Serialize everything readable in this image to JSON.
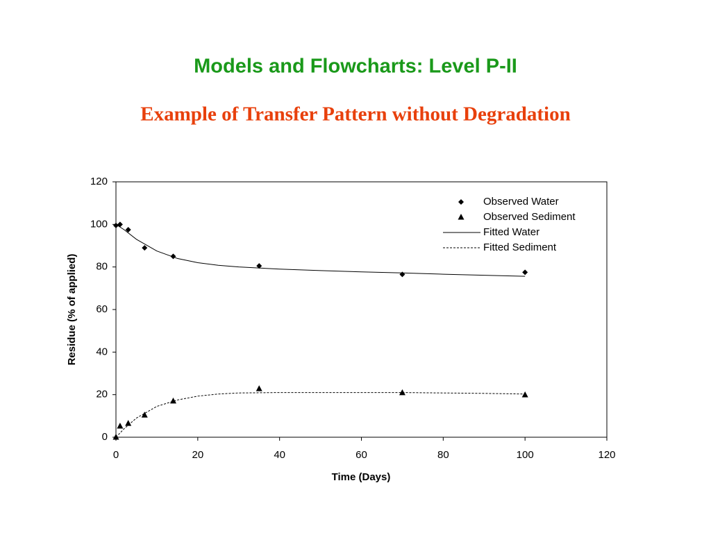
{
  "title": "Models and Flowcharts: Level P-II",
  "subtitle": "Example of Transfer Pattern without Degradation",
  "chart_data": {
    "type": "scatter",
    "xlabel": "Time (Days)",
    "ylabel": "Residue (% of applied)",
    "xlim": [
      0,
      120
    ],
    "xticks": [
      0,
      20,
      40,
      60,
      80,
      100,
      120
    ],
    "ylim": [
      0,
      120
    ],
    "yticks": [
      0,
      20,
      40,
      60,
      80,
      100,
      120
    ],
    "grid": false,
    "legend": "upper right",
    "series": [
      {
        "name": "Observed Water",
        "color": "#000000",
        "marker": "diamond",
        "x": [
          0,
          1,
          3,
          7,
          14,
          35,
          70,
          100
        ],
        "values": [
          99.5,
          100,
          97.5,
          89,
          85,
          80.5,
          76.5,
          77.5
        ]
      },
      {
        "name": "Observed Sediment",
        "color": "#000000",
        "marker": "triangle",
        "x": [
          0,
          1,
          3,
          7,
          14,
          35,
          70,
          100
        ],
        "values": [
          0,
          5.2,
          6.5,
          10.4,
          17,
          22.8,
          20.9,
          19.9
        ]
      },
      {
        "name": "Fitted Water",
        "color": "#000000",
        "line": "solid",
        "x": [
          0,
          2,
          5,
          10,
          15,
          20,
          25,
          30,
          40,
          50,
          60,
          70,
          80,
          90,
          100
        ],
        "values": [
          100,
          97.5,
          93,
          87.5,
          84,
          82,
          80.8,
          80,
          79,
          78.3,
          77.7,
          77.2,
          76.6,
          76.1,
          75.6
        ]
      },
      {
        "name": "Fitted Sediment",
        "color": "#000000",
        "line": "dashed",
        "x": [
          0,
          2,
          5,
          10,
          15,
          20,
          25,
          30,
          40,
          50,
          60,
          70,
          80,
          90,
          100
        ],
        "values": [
          0,
          4,
          9,
          14.5,
          17.5,
          19.3,
          20.3,
          20.8,
          21,
          21,
          21,
          21,
          20.8,
          20.6,
          20.3
        ]
      }
    ]
  }
}
